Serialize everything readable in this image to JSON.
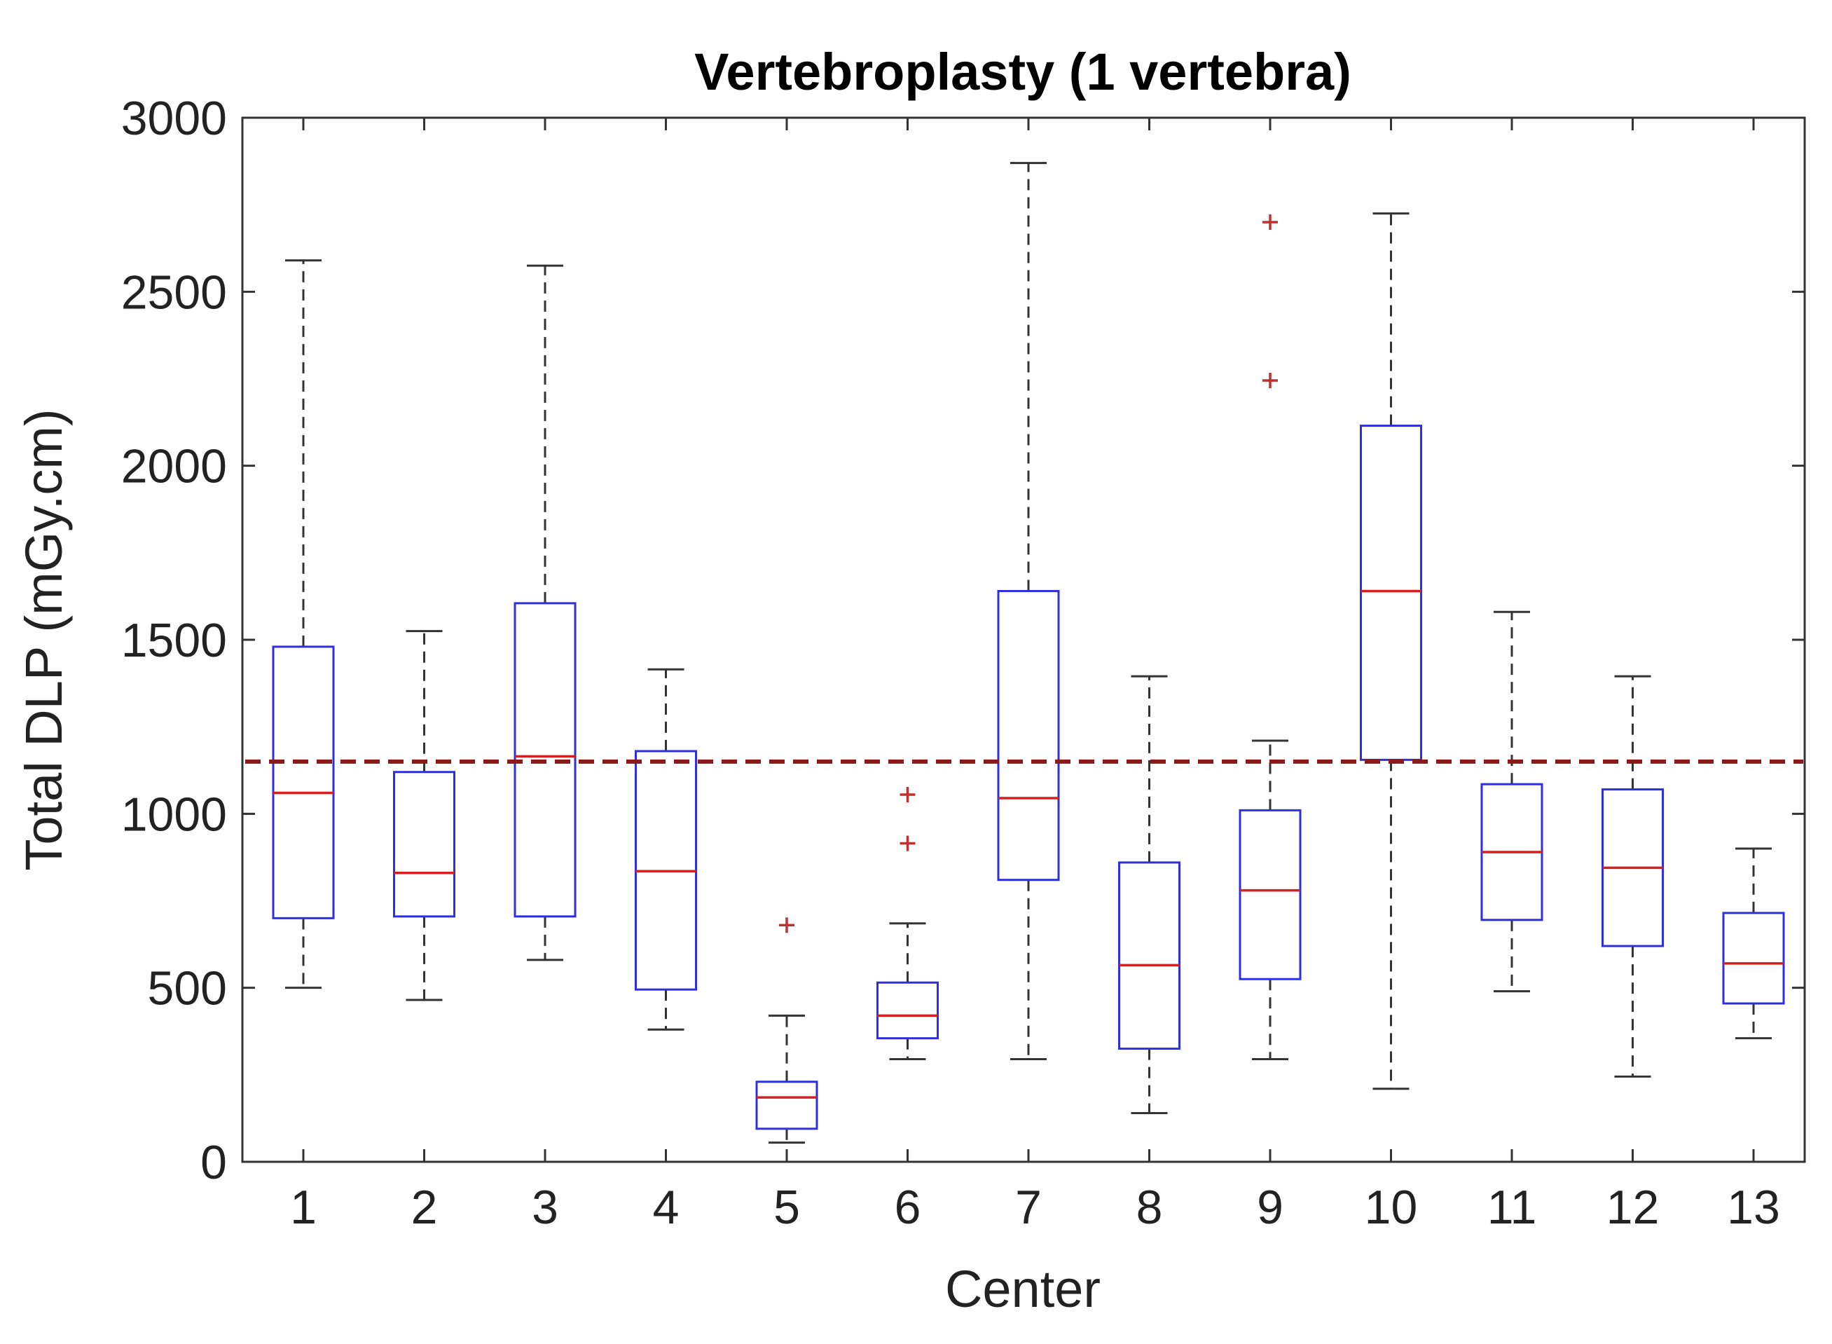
{
  "chart_data": {
    "type": "box",
    "title": "Vertebroplasty (1 vertebra)",
    "xlabel": "Center",
    "ylabel": "Total DLP (mGy.cm)",
    "ylim": [
      0,
      3000
    ],
    "yticks": [
      0,
      500,
      1000,
      1500,
      2000,
      2500,
      3000
    ],
    "categories": [
      "1",
      "2",
      "3",
      "4",
      "5",
      "6",
      "7",
      "8",
      "9",
      "10",
      "11",
      "12",
      "13"
    ],
    "boxes": [
      {
        "min": 500,
        "q1": 700,
        "median": 1060,
        "q3": 1480,
        "max": 2590,
        "outliers": []
      },
      {
        "min": 465,
        "q1": 705,
        "median": 830,
        "q3": 1120,
        "max": 1525,
        "outliers": []
      },
      {
        "min": 580,
        "q1": 705,
        "median": 1165,
        "q3": 1605,
        "max": 2575,
        "outliers": []
      },
      {
        "min": 380,
        "q1": 495,
        "median": 835,
        "q3": 1180,
        "max": 1415,
        "outliers": []
      },
      {
        "min": 55,
        "q1": 95,
        "median": 185,
        "q3": 230,
        "max": 420,
        "outliers": [
          680
        ]
      },
      {
        "min": 295,
        "q1": 355,
        "median": 420,
        "q3": 515,
        "max": 685,
        "outliers": [
          915,
          1055
        ]
      },
      {
        "min": 295,
        "q1": 810,
        "median": 1045,
        "q3": 1640,
        "max": 2870,
        "outliers": []
      },
      {
        "min": 140,
        "q1": 325,
        "median": 565,
        "q3": 860,
        "max": 1395,
        "outliers": []
      },
      {
        "min": 295,
        "q1": 525,
        "median": 780,
        "q3": 1010,
        "max": 1210,
        "outliers": [
          2245,
          2700
        ]
      },
      {
        "min": 210,
        "q1": 1155,
        "median": 1640,
        "q3": 2115,
        "max": 2725,
        "outliers": []
      },
      {
        "min": 490,
        "q1": 695,
        "median": 890,
        "q3": 1085,
        "max": 1580,
        "outliers": []
      },
      {
        "min": 245,
        "q1": 620,
        "median": 845,
        "q3": 1070,
        "max": 1395,
        "outliers": []
      },
      {
        "min": 355,
        "q1": 455,
        "median": 570,
        "q3": 715,
        "max": 900,
        "outliers": []
      }
    ],
    "reference_line": {
      "value": 1150
    },
    "grid": false,
    "colors": {
      "box": "#2f2fe0",
      "median": "#d42020",
      "whisker": "#333333",
      "outlier": "#c03030",
      "reference_line": "#8a1a1a"
    }
  }
}
